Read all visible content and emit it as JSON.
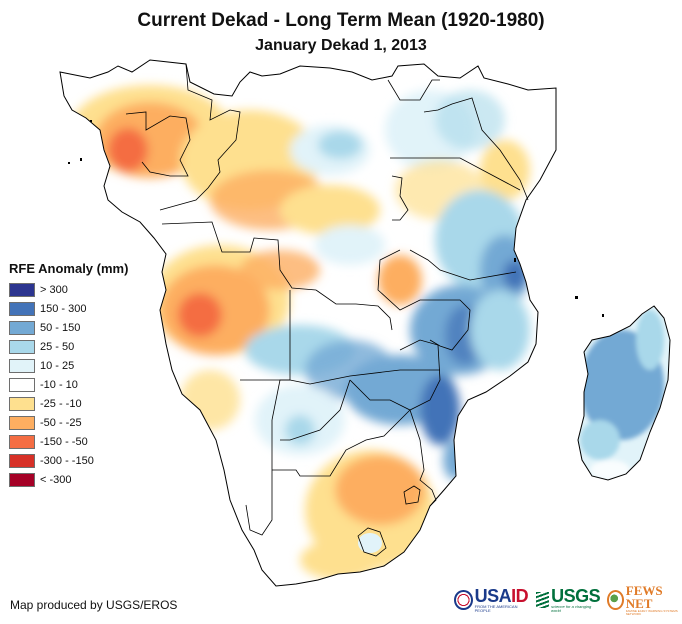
{
  "header": {
    "title": "Current Dekad - Long Term Mean (1920-1980)",
    "subtitle": "January Dekad 1, 2013"
  },
  "legend": {
    "title": "RFE Anomaly (mm)",
    "items": [
      {
        "label": "> 300",
        "color": "#2c3590"
      },
      {
        "label": "150 - 300",
        "color": "#4373b8"
      },
      {
        "label": "50 - 150",
        "color": "#73a9d4"
      },
      {
        "label": "25 - 50",
        "color": "#a9d8ea"
      },
      {
        "label": "10 - 25",
        "color": "#e1f3f9"
      },
      {
        "label": "-10 - 10",
        "color": "#ffffff"
      },
      {
        "label": "-25 - -10",
        "color": "#fee08f"
      },
      {
        "label": "-50 - -25",
        "color": "#fdae61"
      },
      {
        "label": "-150 - -50",
        "color": "#f46d43"
      },
      {
        "label": "-300 - -150",
        "color": "#d73027"
      },
      {
        "label": "< -300",
        "color": "#a50026"
      }
    ]
  },
  "map": {
    "region": "Southern and Central Africa",
    "variable": "Rainfall estimate anomaly"
  },
  "footer": {
    "credit": "Map produced by USGS/EROS",
    "logos": {
      "usaid": {
        "name": "USAID",
        "name_a": "USA",
        "name_b": "ID",
        "tagline": "FROM THE AMERICAN PEOPLE"
      },
      "usgs": {
        "name": "USGS",
        "tagline": "science for a changing world"
      },
      "fews": {
        "name": "FEWS NET",
        "tagline": "FAMINE EARLY WARNING SYSTEMS NETWORK"
      }
    }
  }
}
